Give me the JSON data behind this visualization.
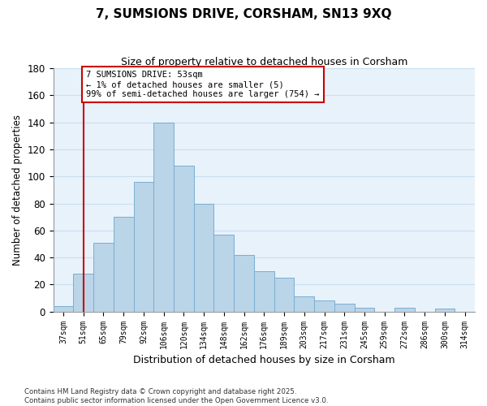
{
  "title": "7, SUMSIONS DRIVE, CORSHAM, SN13 9XQ",
  "subtitle": "Size of property relative to detached houses in Corsham",
  "xlabel": "Distribution of detached houses by size in Corsham",
  "ylabel": "Number of detached properties",
  "bar_color": "#bad4e8",
  "bar_edge_color": "#7aaed0",
  "categories": [
    "37sqm",
    "51sqm",
    "65sqm",
    "79sqm",
    "92sqm",
    "106sqm",
    "120sqm",
    "134sqm",
    "148sqm",
    "162sqm",
    "176sqm",
    "189sqm",
    "203sqm",
    "217sqm",
    "231sqm",
    "245sqm",
    "259sqm",
    "272sqm",
    "286sqm",
    "300sqm",
    "314sqm"
  ],
  "values": [
    4,
    28,
    51,
    70,
    96,
    140,
    108,
    80,
    57,
    42,
    30,
    25,
    11,
    8,
    6,
    3,
    0,
    3,
    0,
    2,
    0
  ],
  "ylim": [
    0,
    180
  ],
  "yticks": [
    0,
    20,
    40,
    60,
    80,
    100,
    120,
    140,
    160,
    180
  ],
  "vline_x_idx": 1,
  "vline_color": "#cc0000",
  "annotation_title": "7 SUMSIONS DRIVE: 53sqm",
  "annotation_line1": "← 1% of detached houses are smaller (5)",
  "annotation_line2": "99% of semi-detached houses are larger (754) →",
  "annotation_box_color": "#ffffff",
  "annotation_box_edge": "#cc0000",
  "footnote1": "Contains HM Land Registry data © Crown copyright and database right 2025.",
  "footnote2": "Contains public sector information licensed under the Open Government Licence v3.0.",
  "grid_color": "#c8dff0",
  "background_color": "#e8f2fb"
}
